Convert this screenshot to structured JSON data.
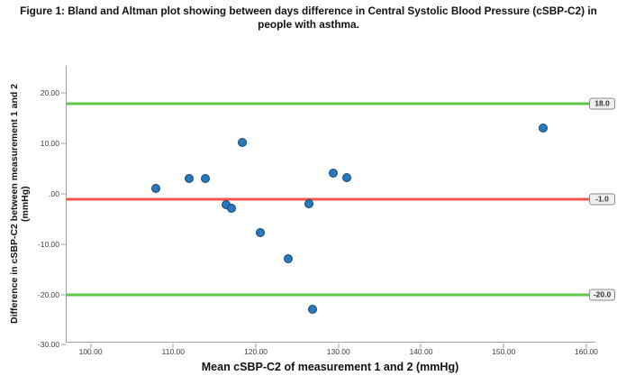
{
  "figure": {
    "title": "Figure 1: Bland and Altman plot showing between days difference in Central Systolic Blood Pressure (cSBP-C2) in people with asthma."
  },
  "chart_data": {
    "type": "scatter",
    "title": "Figure 1: Bland and Altman plot showing between days difference in Central Systolic Blood Pressure (cSBP-C2) in people with asthma.",
    "xlabel": "Mean cSBP-C2 of measurement 1 and 2 (mmHg)",
    "ylabel": "Difference in cSBP-C2 between measurement 1 and 2 (mmHg)",
    "xlim": [
      97.1,
      161.1
    ],
    "ylim": [
      -29.4,
      25.45
    ],
    "grid": false,
    "x_ticks": [
      {
        "value": 100,
        "label": "100.00"
      },
      {
        "value": 110,
        "label": "110.00"
      },
      {
        "value": 120,
        "label": "120.00"
      },
      {
        "value": 130,
        "label": "130.00"
      },
      {
        "value": 140,
        "label": "140.00"
      },
      {
        "value": 150,
        "label": "150.00"
      },
      {
        "value": 160,
        "label": "160.00"
      }
    ],
    "y_ticks": [
      {
        "value": 20,
        "label": "20.00"
      },
      {
        "value": 10,
        "label": "10.00"
      },
      {
        "value": 0,
        "label": ".00"
      },
      {
        "value": -10,
        "label": "-10.00"
      },
      {
        "value": -20,
        "label": "-20.00"
      },
      {
        "value": -30,
        "label": "-30.00"
      }
    ],
    "reference_lines": [
      {
        "name": "upper-limit-of-agreement",
        "value": 18.0,
        "label": "18.0",
        "color": "#5ec944"
      },
      {
        "name": "mean-difference",
        "value": -1.0,
        "label": "-1.0",
        "color": "#f2554b"
      },
      {
        "name": "lower-limit-of-agreement",
        "value": -20.0,
        "label": "-20.0",
        "color": "#5ec944"
      }
    ],
    "points": [
      [
        107.9,
        1.0
      ],
      [
        111.9,
        3.0
      ],
      [
        113.9,
        3.0
      ],
      [
        116.4,
        -2.2
      ],
      [
        117.0,
        -2.9
      ],
      [
        118.4,
        10.2
      ],
      [
        120.5,
        -7.7
      ],
      [
        123.9,
        -12.9
      ],
      [
        126.4,
        -1.9
      ],
      [
        126.9,
        -23.0
      ],
      [
        129.4,
        4.1
      ],
      [
        131.0,
        3.2
      ],
      [
        154.8,
        13.1
      ]
    ],
    "point_color": "#2779be",
    "point_border_color": "#17466b",
    "axis_color": "#9e9e9e"
  }
}
